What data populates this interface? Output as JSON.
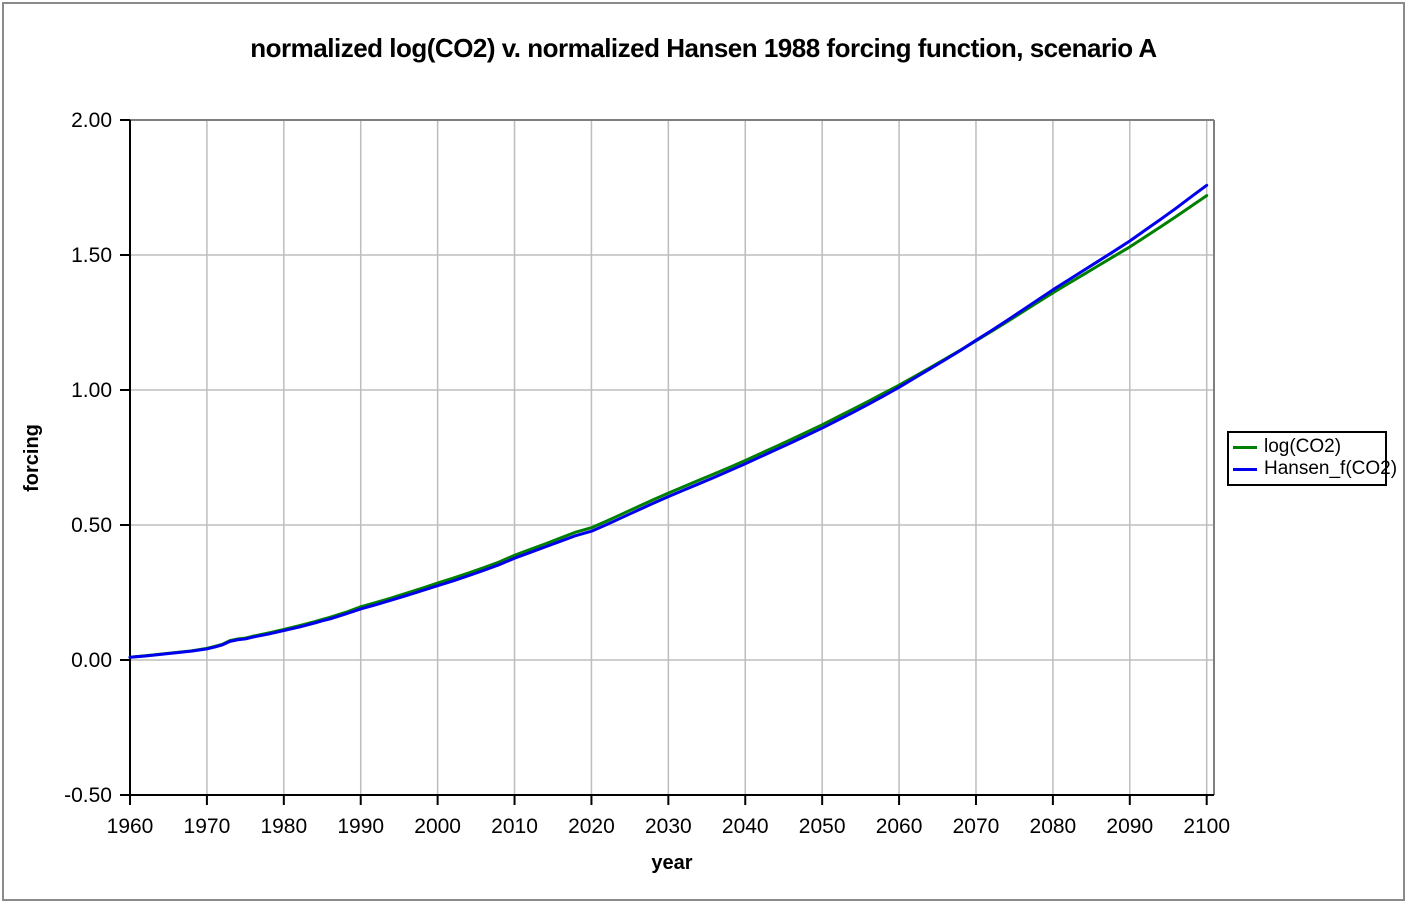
{
  "window": {
    "background": "#ffffff",
    "frame_border_color": "#8a8a8a"
  },
  "chart_data": {
    "type": "line",
    "title": "normalized log(CO2) v. normalized Hansen 1988 forcing function, scenario A",
    "xlabel": "year",
    "ylabel": "forcing",
    "xlim": [
      1960,
      2101
    ],
    "ylim": [
      -0.5,
      2.0
    ],
    "x_ticks": [
      1960,
      1970,
      1980,
      1990,
      2000,
      2010,
      2020,
      2030,
      2040,
      2050,
      2060,
      2070,
      2080,
      2090,
      2100
    ],
    "y_tick_labels": [
      "2.00",
      "1.50",
      "1.00",
      "0.50",
      "0.00",
      "-0.50"
    ],
    "grid": true,
    "legend_position": "right",
    "style": {
      "grid_color": "#bdbdbd",
      "plot_border_color": "#7f7f7f",
      "axis_color": "#000000",
      "line_width": 3
    },
    "series": [
      {
        "name": "log(CO2)",
        "color": "#008000",
        "points": [
          [
            1960,
            0.01
          ],
          [
            1962,
            0.016
          ],
          [
            1964,
            0.022
          ],
          [
            1966,
            0.028
          ],
          [
            1968,
            0.034
          ],
          [
            1970,
            0.043
          ],
          [
            1971,
            0.05
          ],
          [
            1972,
            0.058
          ],
          [
            1973,
            0.072
          ],
          [
            1974,
            0.078
          ],
          [
            1975,
            0.081
          ],
          [
            1976,
            0.088
          ],
          [
            1978,
            0.1
          ],
          [
            1980,
            0.113
          ],
          [
            1982,
            0.127
          ],
          [
            1984,
            0.142
          ],
          [
            1985,
            0.15
          ],
          [
            1986,
            0.158
          ],
          [
            1988,
            0.176
          ],
          [
            1990,
            0.197
          ],
          [
            1992,
            0.213
          ],
          [
            1994,
            0.23
          ],
          [
            1996,
            0.248
          ],
          [
            1998,
            0.266
          ],
          [
            2000,
            0.285
          ],
          [
            2002,
            0.303
          ],
          [
            2004,
            0.322
          ],
          [
            2006,
            0.342
          ],
          [
            2008,
            0.363
          ],
          [
            2010,
            0.388
          ],
          [
            2012,
            0.409
          ],
          [
            2014,
            0.43
          ],
          [
            2016,
            0.452
          ],
          [
            2018,
            0.474
          ],
          [
            2020,
            0.49
          ],
          [
            2022,
            0.515
          ],
          [
            2024,
            0.541
          ],
          [
            2026,
            0.567
          ],
          [
            2028,
            0.593
          ],
          [
            2030,
            0.618
          ],
          [
            2032,
            0.642
          ],
          [
            2034,
            0.666
          ],
          [
            2036,
            0.69
          ],
          [
            2038,
            0.714
          ],
          [
            2040,
            0.739
          ],
          [
            2042,
            0.765
          ],
          [
            2044,
            0.791
          ],
          [
            2046,
            0.817
          ],
          [
            2048,
            0.844
          ],
          [
            2050,
            0.871
          ],
          [
            2052,
            0.9
          ],
          [
            2054,
            0.929
          ],
          [
            2056,
            0.958
          ],
          [
            2058,
            0.988
          ],
          [
            2060,
            1.018
          ],
          [
            2062,
            1.05
          ],
          [
            2064,
            1.082
          ],
          [
            2066,
            1.115
          ],
          [
            2068,
            1.148
          ],
          [
            2070,
            1.182
          ],
          [
            2072,
            1.217
          ],
          [
            2074,
            1.252
          ],
          [
            2076,
            1.288
          ],
          [
            2078,
            1.324
          ],
          [
            2080,
            1.36
          ],
          [
            2082,
            1.394
          ],
          [
            2084,
            1.428
          ],
          [
            2086,
            1.462
          ],
          [
            2088,
            1.496
          ],
          [
            2090,
            1.53
          ],
          [
            2092,
            1.567
          ],
          [
            2094,
            1.604
          ],
          [
            2096,
            1.642
          ],
          [
            2098,
            1.681
          ],
          [
            2100,
            1.72
          ]
        ]
      },
      {
        "name": "Hansen_f(CO2)",
        "color": "#0000ee",
        "points": [
          [
            1960,
            0.01
          ],
          [
            1962,
            0.015
          ],
          [
            1964,
            0.021
          ],
          [
            1966,
            0.027
          ],
          [
            1968,
            0.033
          ],
          [
            1970,
            0.041
          ],
          [
            1971,
            0.048
          ],
          [
            1972,
            0.056
          ],
          [
            1973,
            0.069
          ],
          [
            1974,
            0.075
          ],
          [
            1975,
            0.078
          ],
          [
            1976,
            0.085
          ],
          [
            1978,
            0.096
          ],
          [
            1980,
            0.109
          ],
          [
            1982,
            0.122
          ],
          [
            1984,
            0.137
          ],
          [
            1985,
            0.145
          ],
          [
            1986,
            0.152
          ],
          [
            1988,
            0.17
          ],
          [
            1990,
            0.189
          ],
          [
            1992,
            0.205
          ],
          [
            1994,
            0.222
          ],
          [
            1996,
            0.239
          ],
          [
            1998,
            0.257
          ],
          [
            2000,
            0.275
          ],
          [
            2002,
            0.293
          ],
          [
            2004,
            0.312
          ],
          [
            2006,
            0.332
          ],
          [
            2008,
            0.353
          ],
          [
            2010,
            0.377
          ],
          [
            2012,
            0.398
          ],
          [
            2014,
            0.419
          ],
          [
            2016,
            0.44
          ],
          [
            2018,
            0.461
          ],
          [
            2020,
            0.477
          ],
          [
            2022,
            0.502
          ],
          [
            2024,
            0.528
          ],
          [
            2026,
            0.554
          ],
          [
            2028,
            0.58
          ],
          [
            2030,
            0.605
          ],
          [
            2032,
            0.629
          ],
          [
            2034,
            0.653
          ],
          [
            2036,
            0.677
          ],
          [
            2038,
            0.702
          ],
          [
            2040,
            0.727
          ],
          [
            2042,
            0.753
          ],
          [
            2044,
            0.779
          ],
          [
            2046,
            0.805
          ],
          [
            2048,
            0.832
          ],
          [
            2050,
            0.859
          ],
          [
            2052,
            0.888
          ],
          [
            2054,
            0.917
          ],
          [
            2056,
            0.947
          ],
          [
            2058,
            0.978
          ],
          [
            2060,
            1.01
          ],
          [
            2062,
            1.044
          ],
          [
            2064,
            1.078
          ],
          [
            2066,
            1.112
          ],
          [
            2068,
            1.147
          ],
          [
            2070,
            1.184
          ],
          [
            2072,
            1.22
          ],
          [
            2074,
            1.257
          ],
          [
            2076,
            1.295
          ],
          [
            2078,
            1.333
          ],
          [
            2080,
            1.371
          ],
          [
            2082,
            1.407
          ],
          [
            2084,
            1.443
          ],
          [
            2086,
            1.479
          ],
          [
            2088,
            1.515
          ],
          [
            2090,
            1.552
          ],
          [
            2092,
            1.592
          ],
          [
            2094,
            1.632
          ],
          [
            2096,
            1.673
          ],
          [
            2098,
            1.716
          ],
          [
            2100,
            1.758
          ]
        ]
      }
    ]
  }
}
